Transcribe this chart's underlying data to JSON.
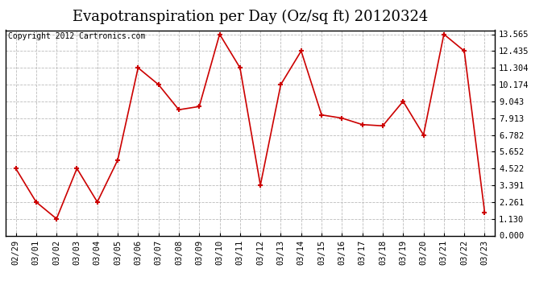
{
  "title": "Evapotranspiration per Day (Oz/sq ft) 20120324",
  "copyright": "Copyright 2012 Cartronics.com",
  "x_labels": [
    "02/29",
    "03/01",
    "03/02",
    "03/03",
    "03/04",
    "03/05",
    "03/06",
    "03/07",
    "03/08",
    "03/09",
    "03/10",
    "03/11",
    "03/12",
    "03/13",
    "03/14",
    "03/15",
    "03/16",
    "03/17",
    "03/18",
    "03/19",
    "03/20",
    "03/21",
    "03/22",
    "03/23"
  ],
  "y_values": [
    4.522,
    2.261,
    1.13,
    4.522,
    2.261,
    5.087,
    11.304,
    10.174,
    8.478,
    8.696,
    13.565,
    11.304,
    3.391,
    10.174,
    12.435,
    8.13,
    7.913,
    7.478,
    7.391,
    9.043,
    6.782,
    13.565,
    12.435,
    1.565
  ],
  "line_color": "#cc0000",
  "marker_color": "#cc0000",
  "background_color": "#ffffff",
  "grid_color": "#bbbbbb",
  "yticks": [
    0.0,
    1.13,
    2.261,
    3.391,
    4.522,
    5.652,
    6.782,
    7.913,
    9.043,
    10.174,
    11.304,
    12.435,
    13.565
  ],
  "ymin": 0.0,
  "ymax": 13.565,
  "title_fontsize": 13,
  "tick_fontsize": 7.5,
  "copyright_fontsize": 7
}
